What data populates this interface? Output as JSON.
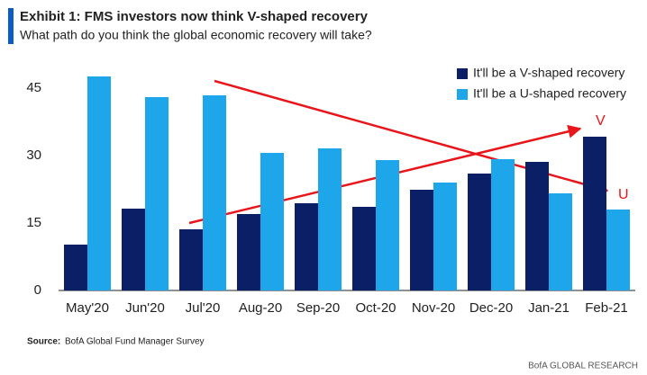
{
  "chart_data": {
    "type": "bar",
    "title": "Exhibit 1: FMS investors now think V-shaped recovery",
    "subtitle": "What path do you think the global economic recovery will take?",
    "categories": [
      "May'20",
      "Jun'20",
      "Jul'20",
      "Aug-20",
      "Sep-20",
      "Oct-20",
      "Nov-20",
      "Dec-20",
      "Jan-21",
      "Feb-21"
    ],
    "series": [
      {
        "name": "It'll be a V-shaped recovery",
        "color": "#0b1f66",
        "values": [
          10.2,
          18.2,
          13.6,
          17,
          19.4,
          18.6,
          22.4,
          26,
          28.6,
          34.2
        ]
      },
      {
        "name": "It'll be a U-shaped recovery",
        "color": "#1ea6ea",
        "values": [
          47.6,
          43,
          43.4,
          30.6,
          31.6,
          29,
          24,
          29.2,
          21.6,
          18
        ]
      }
    ],
    "ylim": [
      0,
      50
    ],
    "yticks": [
      0,
      15,
      30,
      45
    ],
    "grid": false,
    "legend": "top-right",
    "annotations": [
      "V",
      "U"
    ],
    "source_label": "Source:",
    "source": "BofA Global Fund Manager Survey",
    "brand": "BofA GLOBAL RESEARCH"
  }
}
